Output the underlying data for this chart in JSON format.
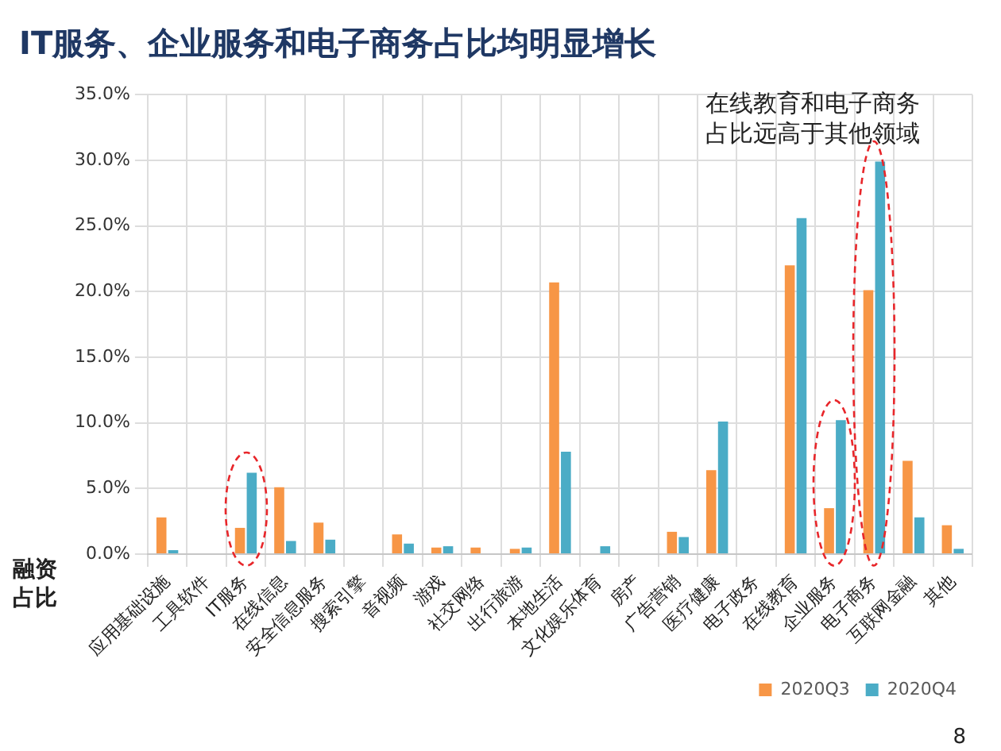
{
  "chart_data": {
    "type": "bar",
    "title": "IT服务、企业服务和电子商务占比均明显增长",
    "ylabel": "融资占比",
    "categories": [
      "应用基础设施",
      "工具软件",
      "IT服务",
      "在线信息",
      "安全信息服务",
      "搜索引擎",
      "音视频",
      "游戏",
      "社交网络",
      "出行旅游",
      "本地生活",
      "文化娱乐体育",
      "房产",
      "广告营销",
      "医疗健康",
      "电子政务",
      "在线教育",
      "企业服务",
      "电子商务",
      "互联网金融",
      "其他"
    ],
    "series": [
      {
        "name": "2020Q3",
        "color": "#f79646",
        "values": [
          2.8,
          null,
          2.0,
          5.1,
          2.4,
          null,
          1.5,
          0.5,
          0.5,
          0.4,
          20.7,
          null,
          null,
          1.7,
          6.4,
          null,
          22.0,
          3.5,
          20.1,
          7.1,
          2.2
        ]
      },
      {
        "name": "2020Q4",
        "color": "#4bacc6",
        "values": [
          0.3,
          null,
          6.2,
          1.0,
          1.1,
          null,
          0.8,
          0.6,
          null,
          0.5,
          7.8,
          0.6,
          null,
          1.3,
          10.1,
          null,
          25.6,
          10.2,
          29.9,
          2.8,
          0.4
        ]
      }
    ],
    "ylim": [
      0,
      35
    ],
    "yticks": [
      {
        "value": 0,
        "label": "0.0%"
      },
      {
        "value": 5,
        "label": "5.0%"
      },
      {
        "value": 10,
        "label": "10.0%"
      },
      {
        "value": 15,
        "label": "15.0%"
      },
      {
        "value": 20,
        "label": "20.0%"
      },
      {
        "value": 25,
        "label": "25.0%"
      },
      {
        "value": 30,
        "label": "30.0%"
      },
      {
        "value": 35,
        "label": "35.0%"
      }
    ],
    "grid": true,
    "legend": "bottom",
    "annotations": [
      "在线教育和电子商务占比远高于其他领域",
      "8"
    ]
  }
}
